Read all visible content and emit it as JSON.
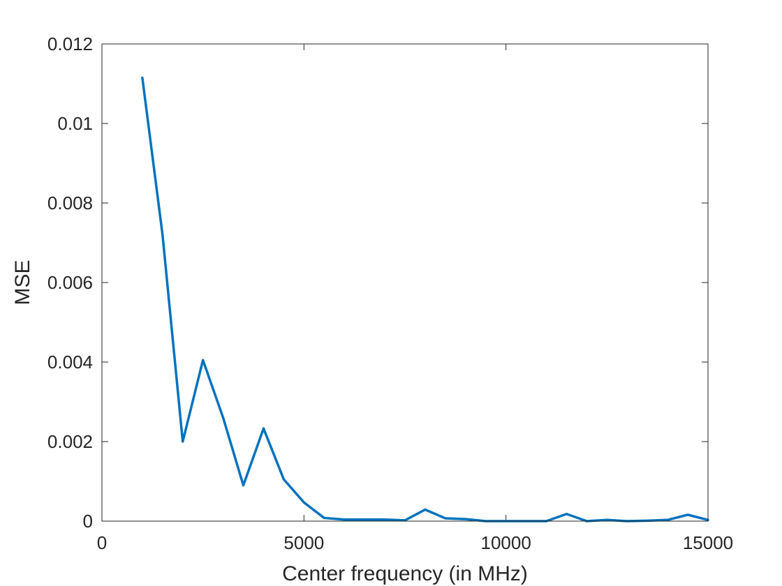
{
  "chart_data": {
    "type": "line",
    "title": "",
    "xlabel": "Center frequency (in MHz)",
    "ylabel": "MSE",
    "xlim": [
      0,
      15000
    ],
    "ylim": [
      0,
      0.012
    ],
    "xticks": [
      0,
      5000,
      10000,
      15000
    ],
    "xtick_labels": [
      "0",
      "5000",
      "10000",
      "15000"
    ],
    "yticks": [
      0,
      0.002,
      0.004,
      0.006,
      0.008,
      0.01,
      0.012
    ],
    "ytick_labels": [
      "0",
      "0.002",
      "0.004",
      "0.006",
      "0.008",
      "0.01",
      "0.012"
    ],
    "grid": false,
    "series": [
      {
        "color": "#0072BD",
        "x": [
          1000,
          1500,
          2000,
          2500,
          3000,
          3500,
          4000,
          4500,
          5000,
          5500,
          6000,
          6500,
          7000,
          7500,
          8000,
          8500,
          9000,
          9500,
          10000,
          10500,
          11000,
          11500,
          12000,
          12500,
          13000,
          13500,
          14000,
          14500,
          15000
        ],
        "y": [
          0.01115,
          0.0072,
          0.002,
          0.00405,
          0.0026,
          0.0009,
          0.00233,
          0.00105,
          0.00047,
          8e-05,
          4e-05,
          4e-05,
          4e-05,
          2e-05,
          0.00029,
          7e-05,
          5e-05,
          0.0,
          0.0,
          0.0,
          0.0,
          0.00018,
          0.0,
          3e-05,
          0.0,
          1e-05,
          3e-05,
          0.00016,
          3e-05
        ]
      }
    ]
  }
}
